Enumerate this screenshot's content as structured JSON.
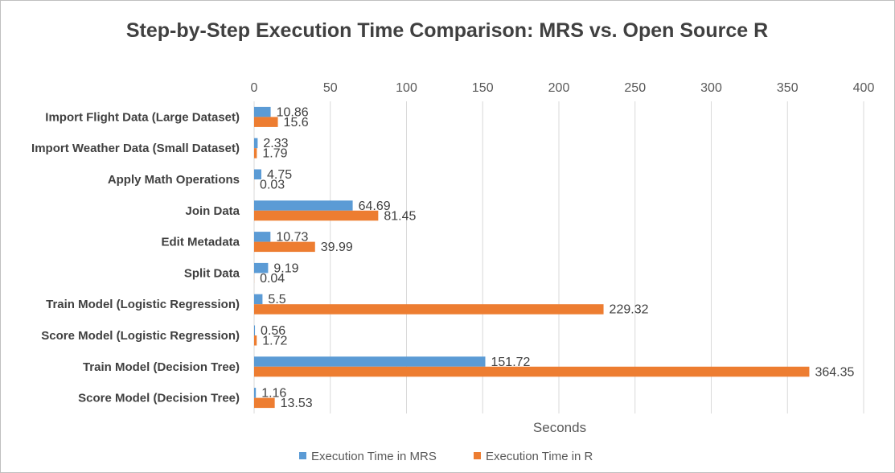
{
  "chart_data": {
    "type": "bar",
    "orientation": "horizontal",
    "title": "Step-by-Step Execution Time Comparison: MRS vs. Open Source R",
    "xlabel": "Seconds",
    "ylabel": "",
    "xlim": [
      0,
      400
    ],
    "xticks": [
      "0",
      "50",
      "100",
      "150",
      "200",
      "250",
      "300",
      "350",
      "400"
    ],
    "xtick_position": "top",
    "grid": true,
    "legend_position": "bottom",
    "categories": [
      "Import Flight Data (Large Dataset)",
      "Import Weather Data (Small Dataset)",
      "Apply Math Operations",
      "Join Data",
      "Edit Metadata",
      "Split Data",
      "Train Model (Logistic Regression)",
      "Score Model (Logistic Regression)",
      "Train Model (Decision Tree)",
      "Score Model (Decision Tree)"
    ],
    "series": [
      {
        "name": "Execution Time in MRS",
        "color": "#5B9BD5",
        "values": [
          10.86,
          2.33,
          4.75,
          64.69,
          10.73,
          9.19,
          5.5,
          0.56,
          151.72,
          1.16
        ],
        "labels": [
          "10.86",
          "2.33",
          "4.75",
          "64.69",
          "10.73",
          "9.19",
          "5.5",
          "0.56",
          "151.72",
          "1.16"
        ]
      },
      {
        "name": "Execution Time in R",
        "color": "#ED7D31",
        "values": [
          15.6,
          1.79,
          0.03,
          81.45,
          39.99,
          0.04,
          229.32,
          1.72,
          364.35,
          13.53
        ],
        "labels": [
          "15.6",
          "1.79",
          "0.03",
          "81.45",
          "39.99",
          "0.04",
          "229.32",
          "1.72",
          "364.35",
          "13.53"
        ]
      }
    ]
  }
}
